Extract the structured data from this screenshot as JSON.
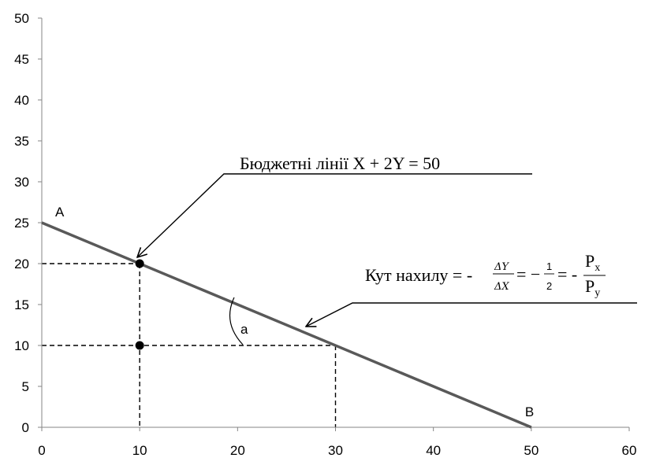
{
  "chart_data": {
    "type": "line",
    "xlim": [
      0,
      60
    ],
    "ylim": [
      0,
      50
    ],
    "x_ticks": [
      0,
      10,
      20,
      30,
      40,
      50,
      60
    ],
    "y_ticks": [
      0,
      5,
      10,
      15,
      20,
      25,
      30,
      35,
      40,
      45,
      50
    ],
    "grid": false,
    "series": [
      {
        "points": [
          [
            0,
            25
          ],
          [
            50,
            0
          ]
        ],
        "color": "#595959"
      }
    ],
    "points": [
      {
        "x": 10,
        "y": 20
      },
      {
        "x": 10,
        "y": 10
      }
    ],
    "point_labels": [
      {
        "text": "A",
        "x": 0,
        "y": 25
      },
      {
        "text": "B",
        "x": 50,
        "y": 0
      }
    ],
    "guides": [
      {
        "from": [
          0,
          20
        ],
        "to": [
          10,
          20
        ]
      },
      {
        "from": [
          10,
          20
        ],
        "to": [
          10,
          0
        ]
      },
      {
        "from": [
          0,
          10
        ],
        "to": [
          30,
          10
        ]
      },
      {
        "from": [
          30,
          10
        ],
        "to": [
          30,
          0
        ]
      }
    ],
    "angle_label": "a",
    "annotations": {
      "budget_line": "Бюджетні лінії X + 2Y = 50",
      "slope_prefix": "Кут нахилу = -",
      "slope_dy": "ΔY",
      "slope_dx": "ΔX",
      "slope_eq": "= −",
      "slope_half_num": "1",
      "slope_half_den": "2",
      "slope_eq2": "= -",
      "slope_px": "P",
      "slope_px_sub": "x",
      "slope_py": "P",
      "slope_py_sub": "y"
    }
  }
}
